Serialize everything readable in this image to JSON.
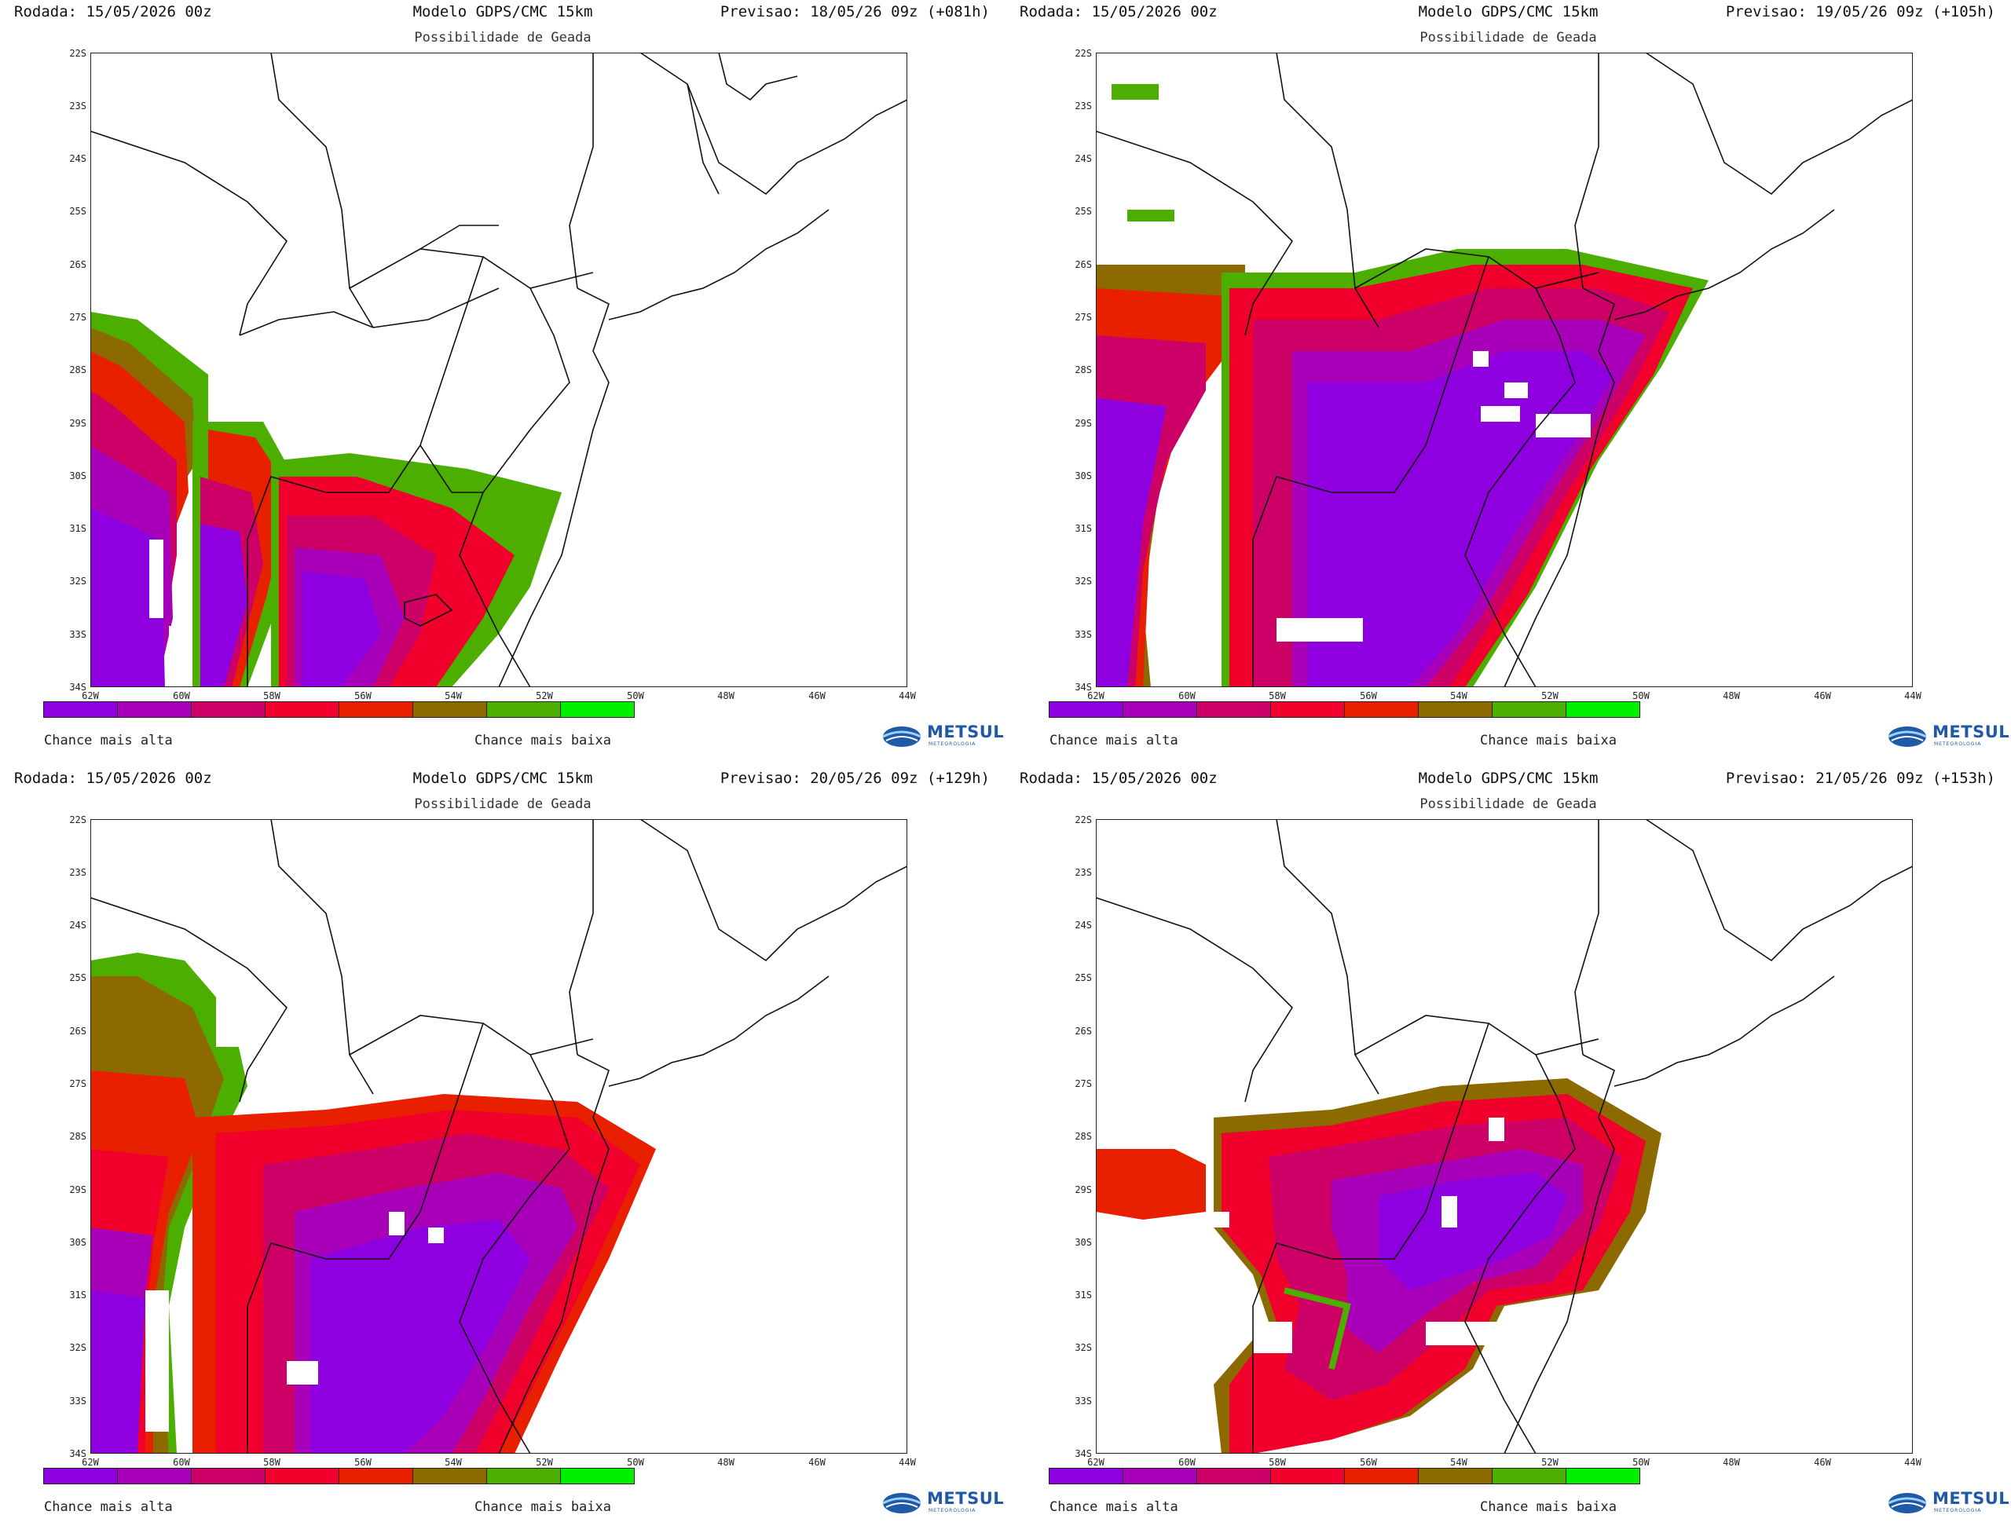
{
  "panels": [
    {
      "run_label": "Rodada: 15/05/2026 00z",
      "model": "Modelo GDPS/CMC 15km",
      "forecast": "Previsao: 18/05/26 09z (+081h)",
      "subtitle": "Possibilidade de Geada"
    },
    {
      "run_label": "Rodada: 15/05/2026 00z",
      "model": "Modelo GDPS/CMC 15km",
      "forecast": "Previsao: 19/05/26 09z (+105h)",
      "subtitle": "Possibilidade de Geada"
    },
    {
      "run_label": "Rodada: 15/05/2026 00z",
      "model": "Modelo GDPS/CMC 15km",
      "forecast": "Previsao: 20/05/26 09z (+129h)",
      "subtitle": "Possibilidade de Geada"
    },
    {
      "run_label": "Rodada: 15/05/2026 00z",
      "model": "Modelo GDPS/CMC 15km",
      "forecast": "Previsao: 21/05/26 09z (+153h)",
      "subtitle": "Possibilidade de Geada"
    }
  ],
  "lat_ticks": [
    "22S",
    "23S",
    "24S",
    "25S",
    "26S",
    "27S",
    "28S",
    "29S",
    "30S",
    "31S",
    "32S",
    "33S",
    "34S"
  ],
  "lon_ticks": [
    "62W",
    "60W",
    "58W",
    "56W",
    "54W",
    "52W",
    "50W",
    "48W",
    "46W",
    "44W"
  ],
  "legend": {
    "high_label": "Chance mais alta",
    "low_label": "Chance mais baixa",
    "colors": [
      "#8f00e0",
      "#a800b8",
      "#cc0066",
      "#f0002a",
      "#e82000",
      "#8c6a00",
      "#4caf00",
      "#00f000"
    ]
  },
  "logo": {
    "name": "METSUL",
    "sub": "METEOROLOGIA"
  }
}
